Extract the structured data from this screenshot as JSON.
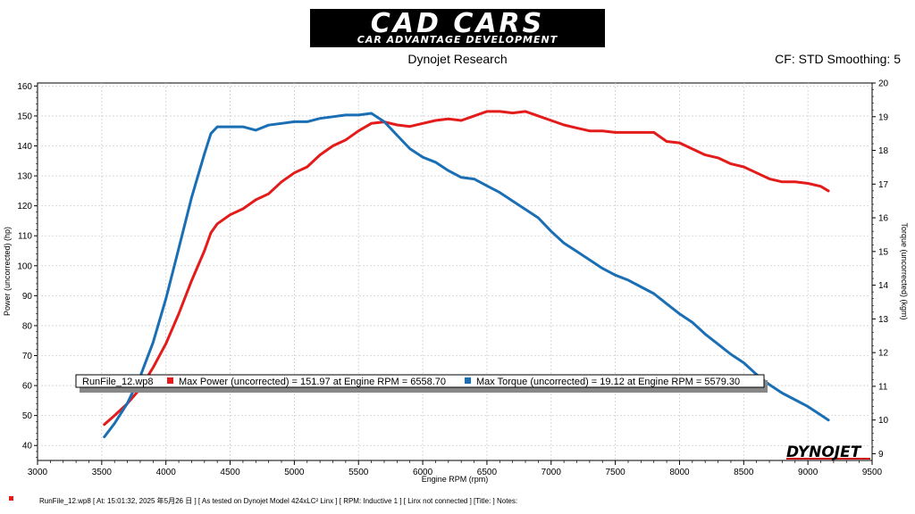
{
  "header": {
    "logo_text": "CAD CARS",
    "logo_subtext": "CAR ADVANTAGE DEVELOPMENT",
    "subtitle": "Dynojet Research",
    "cf_label": "CF: STD Smoothing: 5"
  },
  "chart_data": {
    "type": "line",
    "xlabel": "Engine RPM (rpm)",
    "ylabel": "Power (uncorrected) (hp)",
    "y2label": "Torque (uncorrected) (kgm)",
    "xlim": [
      3000,
      9500
    ],
    "ylim": [
      35,
      161
    ],
    "y2lim": [
      8.8,
      20
    ],
    "x_ticks": [
      "3000",
      "3500",
      "4000",
      "4500",
      "5000",
      "5500",
      "6000",
      "6500",
      "7000",
      "7500",
      "8000",
      "8500",
      "9000",
      "9500"
    ],
    "y_ticks": [
      "40",
      "50",
      "60",
      "70",
      "80",
      "90",
      "100",
      "110",
      "120",
      "130",
      "140",
      "150",
      "160"
    ],
    "y2_ticks": [
      "9",
      "10",
      "11",
      "12",
      "13",
      "14",
      "15",
      "16",
      "17",
      "18",
      "19",
      "20"
    ],
    "grid": true,
    "series": [
      {
        "name": "Power (uncorrected)",
        "axis": "left",
        "color": "#e31b1b",
        "points": [
          [
            3520,
            47
          ],
          [
            3600,
            50
          ],
          [
            3700,
            54
          ],
          [
            3800,
            59
          ],
          [
            3900,
            66
          ],
          [
            4000,
            74
          ],
          [
            4100,
            84
          ],
          [
            4200,
            95
          ],
          [
            4300,
            105
          ],
          [
            4350,
            111
          ],
          [
            4400,
            114
          ],
          [
            4500,
            117
          ],
          [
            4600,
            119
          ],
          [
            4700,
            122
          ],
          [
            4800,
            124
          ],
          [
            4900,
            128
          ],
          [
            5000,
            131
          ],
          [
            5100,
            133
          ],
          [
            5200,
            137
          ],
          [
            5300,
            140
          ],
          [
            5400,
            142
          ],
          [
            5500,
            145
          ],
          [
            5600,
            147.5
          ],
          [
            5700,
            148
          ],
          [
            5800,
            147
          ],
          [
            5900,
            146.5
          ],
          [
            6000,
            147.5
          ],
          [
            6100,
            148.5
          ],
          [
            6200,
            149
          ],
          [
            6300,
            148.5
          ],
          [
            6400,
            150
          ],
          [
            6500,
            151.5
          ],
          [
            6600,
            151.5
          ],
          [
            6700,
            151
          ],
          [
            6800,
            151.5
          ],
          [
            6900,
            150
          ],
          [
            7000,
            148.5
          ],
          [
            7100,
            147
          ],
          [
            7200,
            146
          ],
          [
            7300,
            145
          ],
          [
            7400,
            145
          ],
          [
            7500,
            144.5
          ],
          [
            7600,
            144.5
          ],
          [
            7700,
            144.5
          ],
          [
            7800,
            144.5
          ],
          [
            7900,
            141.5
          ],
          [
            8000,
            141
          ],
          [
            8100,
            139
          ],
          [
            8200,
            137
          ],
          [
            8300,
            136
          ],
          [
            8400,
            134
          ],
          [
            8500,
            133
          ],
          [
            8600,
            131
          ],
          [
            8700,
            129
          ],
          [
            8800,
            128
          ],
          [
            8900,
            128
          ],
          [
            9000,
            127.5
          ],
          [
            9100,
            126.5
          ],
          [
            9160,
            125
          ]
        ]
      },
      {
        "name": "Torque (uncorrected)",
        "axis": "right",
        "color": "#1a6fb4",
        "points": [
          [
            3520,
            9.5
          ],
          [
            3600,
            9.9
          ],
          [
            3700,
            10.5
          ],
          [
            3800,
            11.3
          ],
          [
            3900,
            12.3
          ],
          [
            4000,
            13.6
          ],
          [
            4100,
            15.1
          ],
          [
            4200,
            16.6
          ],
          [
            4300,
            17.9
          ],
          [
            4350,
            18.5
          ],
          [
            4400,
            18.7
          ],
          [
            4500,
            18.7
          ],
          [
            4600,
            18.7
          ],
          [
            4700,
            18.6
          ],
          [
            4800,
            18.75
          ],
          [
            4900,
            18.8
          ],
          [
            5000,
            18.85
          ],
          [
            5100,
            18.85
          ],
          [
            5200,
            18.95
          ],
          [
            5300,
            19.0
          ],
          [
            5400,
            19.05
          ],
          [
            5500,
            19.05
          ],
          [
            5600,
            19.1
          ],
          [
            5700,
            18.85
          ],
          [
            5800,
            18.45
          ],
          [
            5900,
            18.05
          ],
          [
            6000,
            17.8
          ],
          [
            6100,
            17.65
          ],
          [
            6200,
            17.4
          ],
          [
            6300,
            17.2
          ],
          [
            6400,
            17.15
          ],
          [
            6500,
            16.95
          ],
          [
            6600,
            16.75
          ],
          [
            6700,
            16.5
          ],
          [
            6800,
            16.25
          ],
          [
            6900,
            16.0
          ],
          [
            7000,
            15.6
          ],
          [
            7100,
            15.25
          ],
          [
            7200,
            15.0
          ],
          [
            7300,
            14.75
          ],
          [
            7400,
            14.5
          ],
          [
            7500,
            14.3
          ],
          [
            7600,
            14.15
          ],
          [
            7700,
            13.95
          ],
          [
            7800,
            13.75
          ],
          [
            7900,
            13.45
          ],
          [
            8000,
            13.15
          ],
          [
            8100,
            12.9
          ],
          [
            8200,
            12.55
          ],
          [
            8300,
            12.25
          ],
          [
            8400,
            11.95
          ],
          [
            8500,
            11.7
          ],
          [
            8600,
            11.35
          ],
          [
            8700,
            11.05
          ],
          [
            8800,
            10.8
          ],
          [
            8900,
            10.6
          ],
          [
            9000,
            10.4
          ],
          [
            9100,
            10.15
          ],
          [
            9160,
            10.0
          ]
        ]
      }
    ],
    "legend": {
      "file": "RunFile_12.wp8",
      "entries": [
        {
          "color": "#e31b1b",
          "text": "Max Power (uncorrected) = 151.97 at Engine RPM = 6558.70"
        },
        {
          "color": "#1a6fb4",
          "text": "Max Torque (uncorrected) = 19.12 at Engine RPM = 5579.30"
        }
      ]
    },
    "watermark": "DYNOJET"
  },
  "footer": {
    "text": "RunFile_12.wp8  [  At:  15:01:32,  2025 年5月26 日 ] [ As tested on Dynojet Model 424xLC² Linx ] [ RPM: Inductive 1 ] [ Linx not connected ] [Title: ]   Notes:"
  }
}
